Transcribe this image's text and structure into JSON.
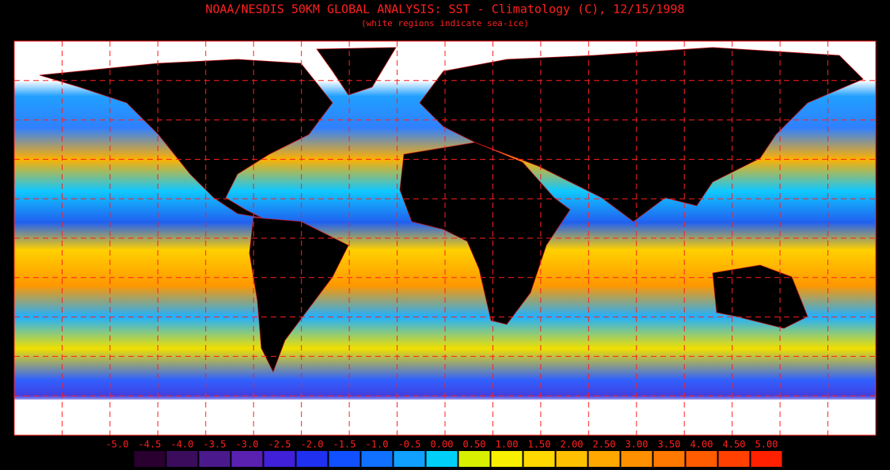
{
  "header": {
    "title": "NOAA/NESDIS 50KM GLOBAL ANALYSIS: SST - Climatology (C), 12/15/1998",
    "subtitle": "(white regions indicate sea-ice)"
  },
  "colorbar": {
    "labels": [
      "-5.0",
      "-4.5",
      "-4.0",
      "-3.5",
      "-3.0",
      "-2.5",
      "-2.0",
      "-1.5",
      "-1.0",
      "-0.5",
      "0.00",
      "0.50",
      "1.00",
      "1.50",
      "2.00",
      "2.50",
      "3.00",
      "3.50",
      "4.00",
      "4.50",
      "5.00"
    ],
    "colors": [
      "#2a0030",
      "#3c0c5c",
      "#4a1a8c",
      "#5a20b0",
      "#4020d8",
      "#2030f0",
      "#1050ff",
      "#1070ff",
      "#10a0ff",
      "#00d0f8",
      "#d8f000",
      "#f8f000",
      "#ffd800",
      "#ffc000",
      "#ffa800",
      "#ff9000",
      "#ff7800",
      "#ff5c00",
      "#ff4000",
      "#ff2000"
    ]
  }
}
